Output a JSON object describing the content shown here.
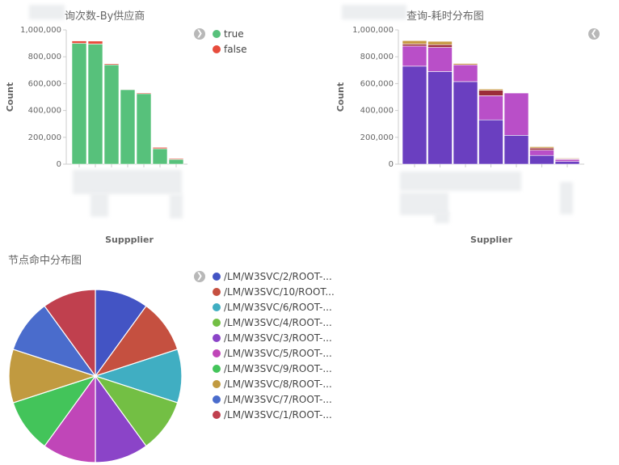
{
  "chart1": {
    "title_visible": "询次数-By供应商",
    "legend": [
      {
        "label": "true",
        "color": "#57c17b"
      },
      {
        "label": "false",
        "color": "#e74c3c"
      }
    ],
    "toggle_icon": "chevron-right-icon"
  },
  "chart2": {
    "title_visible": "查询-耗时分布图",
    "toggle_icon": "chevron-left-icon"
  },
  "chart3": {
    "title": "节点命中分布图",
    "toggle_icon": "chevron-right-icon"
  },
  "chart_data": [
    {
      "type": "bar",
      "stacked": true,
      "title": "询次数-By供应商",
      "xlabel": "Suppplier",
      "ylabel": "Count",
      "ylim": [
        0,
        1000000
      ],
      "yticks": [
        0,
        200000,
        400000,
        600000,
        800000,
        1000000
      ],
      "ytick_labels": [
        "0",
        "200,000",
        "400,000",
        "600,000",
        "800,000",
        "1,000,000"
      ],
      "series": [
        {
          "name": "true",
          "color": "#57c17b",
          "values": [
            900000,
            895000,
            740000,
            555000,
            525000,
            115000,
            35000
          ]
        },
        {
          "name": "false",
          "color": "#e74c3c",
          "values": [
            18000,
            22000,
            8000,
            4000,
            7000,
            10000,
            7000
          ]
        }
      ],
      "legend_position": "right",
      "grid": false
    },
    {
      "type": "bar",
      "stacked": true,
      "title": "查询-耗时分布图",
      "xlabel": "Supplier",
      "ylabel": "Count",
      "ylim": [
        0,
        1000000
      ],
      "yticks": [
        0,
        200000,
        400000,
        600000,
        800000,
        1000000
      ],
      "ytick_labels": [
        "0",
        "200,000",
        "400,000",
        "600,000",
        "800,000",
        "1,000,000"
      ],
      "series": [
        {
          "color": "#6a3fc0",
          "values": [
            730000,
            690000,
            615000,
            330000,
            215000,
            65000,
            20000
          ]
        },
        {
          "color": "#b94fc8",
          "values": [
            150000,
            180000,
            125000,
            180000,
            315000,
            40000,
            15000
          ]
        },
        {
          "color": "#9b2d3a",
          "values": [
            15000,
            20000,
            0,
            40000,
            0,
            15000,
            5000
          ]
        },
        {
          "color": "#c89b45",
          "values": [
            25000,
            25000,
            10000,
            10000,
            0,
            10000,
            5000
          ]
        }
      ],
      "grid": false
    },
    {
      "type": "pie",
      "title": "节点命中分布图",
      "legend_position": "right",
      "slices": [
        {
          "label": "/LM/W3SVC/2/ROOT-...",
          "value": 10,
          "color": "#4354c4"
        },
        {
          "label": "/LM/W3SVC/10/ROOT...",
          "value": 10,
          "color": "#c55040"
        },
        {
          "label": "/LM/W3SVC/6/ROOT-...",
          "value": 10,
          "color": "#40aec2"
        },
        {
          "label": "/LM/W3SVC/4/ROOT-...",
          "value": 10,
          "color": "#73bf44"
        },
        {
          "label": "/LM/W3SVC/3/ROOT-...",
          "value": 10,
          "color": "#8b44c8"
        },
        {
          "label": "/LM/W3SVC/5/ROOT-...",
          "value": 10,
          "color": "#c046b8"
        },
        {
          "label": "/LM/W3SVC/9/ROOT-...",
          "value": 10,
          "color": "#43c45a"
        },
        {
          "label": "/LM/W3SVC/8/ROOT-...",
          "value": 10,
          "color": "#c19a40"
        },
        {
          "label": "/LM/W3SVC/7/ROOT-...",
          "value": 10,
          "color": "#4a6ccc"
        },
        {
          "label": "/LM/W3SVC/1/ROOT-...",
          "value": 10,
          "color": "#c0404e"
        }
      ]
    }
  ]
}
